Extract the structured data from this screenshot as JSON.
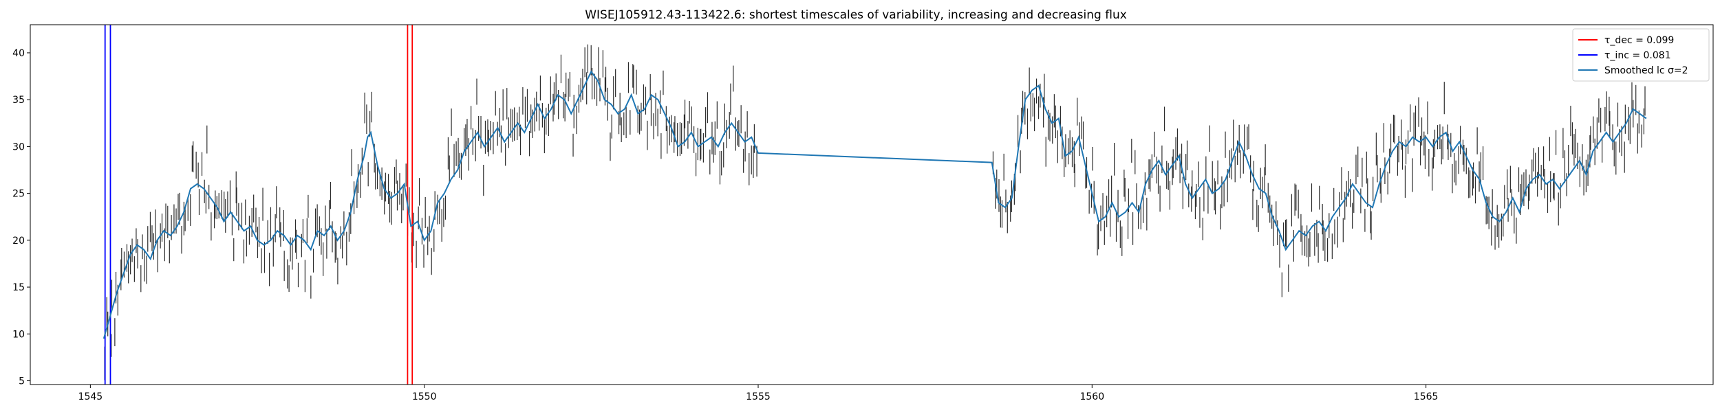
{
  "chart_data": {
    "type": "line",
    "title": "WISEJ105912.43-113422.6: shortest timescales of variability, increasing and decreasing flux",
    "xlabel": "",
    "ylabel": "",
    "xlim": [
      1544.1,
      1569.3
    ],
    "ylim": [
      4.6,
      43.0
    ],
    "x_ticks": [
      1545,
      1550,
      1555,
      1560,
      1565
    ],
    "y_ticks": [
      5,
      10,
      15,
      20,
      25,
      30,
      35,
      40
    ],
    "grid": false,
    "legend_position": "top-right",
    "legend": [
      {
        "label": "τ_dec = 0.099",
        "color": "#ff0000",
        "kind": "line"
      },
      {
        "label": "τ_inc = 0.081",
        "color": "#0000ff",
        "kind": "line"
      },
      {
        "label": "Smoothed lc σ=2",
        "color": "#1f77b4",
        "kind": "line"
      }
    ],
    "vertical_lines": [
      {
        "series": "tau_inc",
        "color": "#0000ff",
        "x": [
          1545.22,
          1545.3
        ]
      },
      {
        "series": "tau_dec",
        "color": "#ff0000",
        "x": [
          1549.75,
          1549.82
        ]
      }
    ],
    "smoothed_series": {
      "name": "Smoothed lc σ=2",
      "color": "#1f77b4",
      "points": [
        [
          1545.2,
          9.5
        ],
        [
          1545.3,
          12.0
        ],
        [
          1545.4,
          14.5
        ],
        [
          1545.5,
          16.5
        ],
        [
          1545.6,
          18.5
        ],
        [
          1545.7,
          19.5
        ],
        [
          1545.8,
          19.0
        ],
        [
          1545.9,
          18.0
        ],
        [
          1546.0,
          20.0
        ],
        [
          1546.1,
          21.0
        ],
        [
          1546.2,
          20.5
        ],
        [
          1546.3,
          21.5
        ],
        [
          1546.4,
          23.0
        ],
        [
          1546.5,
          25.5
        ],
        [
          1546.6,
          26.0
        ],
        [
          1546.7,
          25.5
        ],
        [
          1546.8,
          24.5
        ],
        [
          1546.9,
          23.5
        ],
        [
          1547.0,
          22.0
        ],
        [
          1547.1,
          23.0
        ],
        [
          1547.2,
          22.0
        ],
        [
          1547.3,
          21.0
        ],
        [
          1547.4,
          21.5
        ],
        [
          1547.5,
          20.0
        ],
        [
          1547.6,
          19.5
        ],
        [
          1547.7,
          20.0
        ],
        [
          1547.8,
          21.0
        ],
        [
          1547.9,
          20.5
        ],
        [
          1548.0,
          19.5
        ],
        [
          1548.1,
          20.5
        ],
        [
          1548.2,
          20.0
        ],
        [
          1548.3,
          19.0
        ],
        [
          1548.4,
          21.0
        ],
        [
          1548.5,
          20.5
        ],
        [
          1548.6,
          21.5
        ],
        [
          1548.7,
          20.0
        ],
        [
          1548.8,
          21.0
        ],
        [
          1548.9,
          23.0
        ],
        [
          1549.0,
          26.5
        ],
        [
          1549.1,
          29.0
        ],
        [
          1549.15,
          31.0
        ],
        [
          1549.2,
          31.5
        ],
        [
          1549.3,
          28.0
        ],
        [
          1549.4,
          25.5
        ],
        [
          1549.5,
          24.5
        ],
        [
          1549.6,
          25.0
        ],
        [
          1549.7,
          26.0
        ],
        [
          1549.8,
          21.5
        ],
        [
          1549.9,
          22.0
        ],
        [
          1550.0,
          20.0
        ],
        [
          1550.1,
          21.0
        ],
        [
          1550.2,
          24.0
        ],
        [
          1550.3,
          25.0
        ],
        [
          1550.4,
          26.5
        ],
        [
          1550.5,
          27.5
        ],
        [
          1550.6,
          29.5
        ],
        [
          1550.7,
          30.5
        ],
        [
          1550.8,
          31.5
        ],
        [
          1550.9,
          30.0
        ],
        [
          1551.0,
          31.0
        ],
        [
          1551.1,
          32.0
        ],
        [
          1551.2,
          30.5
        ],
        [
          1551.3,
          31.5
        ],
        [
          1551.4,
          32.5
        ],
        [
          1551.5,
          31.5
        ],
        [
          1551.6,
          33.0
        ],
        [
          1551.7,
          34.5
        ],
        [
          1551.8,
          33.0
        ],
        [
          1551.9,
          34.0
        ],
        [
          1552.0,
          35.5
        ],
        [
          1552.1,
          35.0
        ],
        [
          1552.2,
          33.5
        ],
        [
          1552.3,
          35.0
        ],
        [
          1552.4,
          36.5
        ],
        [
          1552.5,
          38.0
        ],
        [
          1552.6,
          37.0
        ],
        [
          1552.7,
          35.0
        ],
        [
          1552.8,
          34.5
        ],
        [
          1552.9,
          33.5
        ],
        [
          1553.0,
          34.0
        ],
        [
          1553.1,
          35.5
        ],
        [
          1553.2,
          33.5
        ],
        [
          1553.3,
          34.0
        ],
        [
          1553.4,
          35.5
        ],
        [
          1553.5,
          35.0
        ],
        [
          1553.6,
          33.5
        ],
        [
          1553.7,
          32.0
        ],
        [
          1553.8,
          30.0
        ],
        [
          1553.9,
          30.5
        ],
        [
          1554.0,
          31.5
        ],
        [
          1554.1,
          30.0
        ],
        [
          1554.2,
          30.5
        ],
        [
          1554.3,
          31.0
        ],
        [
          1554.4,
          30.0
        ],
        [
          1554.5,
          31.5
        ],
        [
          1554.6,
          32.5
        ],
        [
          1554.7,
          31.5
        ],
        [
          1554.8,
          30.5
        ],
        [
          1554.9,
          31.0
        ],
        [
          1555.0,
          29.3
        ],
        [
          1558.5,
          28.3
        ],
        [
          1558.6,
          24.0
        ],
        [
          1558.7,
          23.5
        ],
        [
          1558.8,
          24.5
        ],
        [
          1558.9,
          30.0
        ],
        [
          1559.0,
          35.0
        ],
        [
          1559.1,
          36.0
        ],
        [
          1559.2,
          36.5
        ],
        [
          1559.3,
          34.0
        ],
        [
          1559.4,
          32.5
        ],
        [
          1559.5,
          33.0
        ],
        [
          1559.6,
          29.0
        ],
        [
          1559.7,
          29.5
        ],
        [
          1559.8,
          31.0
        ],
        [
          1559.9,
          28.0
        ],
        [
          1560.0,
          25.0
        ],
        [
          1560.1,
          22.0
        ],
        [
          1560.2,
          22.5
        ],
        [
          1560.3,
          24.0
        ],
        [
          1560.4,
          22.5
        ],
        [
          1560.5,
          23.0
        ],
        [
          1560.6,
          24.0
        ],
        [
          1560.7,
          23.0
        ],
        [
          1560.8,
          26.0
        ],
        [
          1560.9,
          27.5
        ],
        [
          1561.0,
          28.5
        ],
        [
          1561.1,
          27.0
        ],
        [
          1561.2,
          28.0
        ],
        [
          1561.3,
          29.0
        ],
        [
          1561.4,
          26.0
        ],
        [
          1561.5,
          24.5
        ],
        [
          1561.6,
          25.5
        ],
        [
          1561.7,
          26.5
        ],
        [
          1561.8,
          25.0
        ],
        [
          1561.9,
          25.5
        ],
        [
          1562.0,
          26.5
        ],
        [
          1562.1,
          28.5
        ],
        [
          1562.2,
          30.5
        ],
        [
          1562.3,
          29.0
        ],
        [
          1562.4,
          27.0
        ],
        [
          1562.5,
          25.5
        ],
        [
          1562.6,
          25.0
        ],
        [
          1562.7,
          22.5
        ],
        [
          1562.8,
          21.0
        ],
        [
          1562.9,
          19.0
        ],
        [
          1563.0,
          20.0
        ],
        [
          1563.1,
          21.0
        ],
        [
          1563.2,
          20.5
        ],
        [
          1563.3,
          21.5
        ],
        [
          1563.4,
          22.0
        ],
        [
          1563.5,
          21.0
        ],
        [
          1563.6,
          22.5
        ],
        [
          1563.7,
          23.5
        ],
        [
          1563.8,
          24.5
        ],
        [
          1563.9,
          26.0
        ],
        [
          1564.0,
          25.0
        ],
        [
          1564.1,
          24.0
        ],
        [
          1564.2,
          23.5
        ],
        [
          1564.3,
          26.0
        ],
        [
          1564.4,
          28.0
        ],
        [
          1564.5,
          29.5
        ],
        [
          1564.6,
          30.5
        ],
        [
          1564.7,
          30.0
        ],
        [
          1564.8,
          31.0
        ],
        [
          1564.9,
          30.5
        ],
        [
          1565.0,
          31.0
        ],
        [
          1565.1,
          30.0
        ],
        [
          1565.2,
          31.0
        ],
        [
          1565.3,
          31.5
        ],
        [
          1565.4,
          29.5
        ],
        [
          1565.5,
          30.5
        ],
        [
          1565.6,
          29.0
        ],
        [
          1565.7,
          27.5
        ],
        [
          1565.8,
          26.5
        ],
        [
          1565.9,
          24.0
        ],
        [
          1566.0,
          22.5
        ],
        [
          1566.1,
          22.0
        ],
        [
          1566.2,
          23.0
        ],
        [
          1566.3,
          24.5
        ],
        [
          1566.4,
          23.0
        ],
        [
          1566.5,
          25.5
        ],
        [
          1566.6,
          26.5
        ],
        [
          1566.7,
          27.0
        ],
        [
          1566.8,
          26.0
        ],
        [
          1566.9,
          26.5
        ],
        [
          1567.0,
          25.5
        ],
        [
          1567.1,
          26.5
        ],
        [
          1567.2,
          27.5
        ],
        [
          1567.3,
          28.5
        ],
        [
          1567.4,
          27.0
        ],
        [
          1567.5,
          29.5
        ],
        [
          1567.6,
          30.5
        ],
        [
          1567.7,
          31.5
        ],
        [
          1567.8,
          30.5
        ],
        [
          1567.9,
          31.5
        ],
        [
          1568.0,
          32.5
        ],
        [
          1568.1,
          34.0
        ],
        [
          1568.2,
          33.5
        ],
        [
          1568.3,
          33.0
        ]
      ]
    },
    "observations": {
      "color": "#2b2b2b",
      "segments": [
        {
          "x": [
            1545.2,
            1555.0
          ],
          "n": 330
        },
        {
          "x": [
            1558.5,
            1568.3
          ],
          "n": 340
        }
      ],
      "scatter_sd": 2.0,
      "error_half": 1.5
    }
  }
}
